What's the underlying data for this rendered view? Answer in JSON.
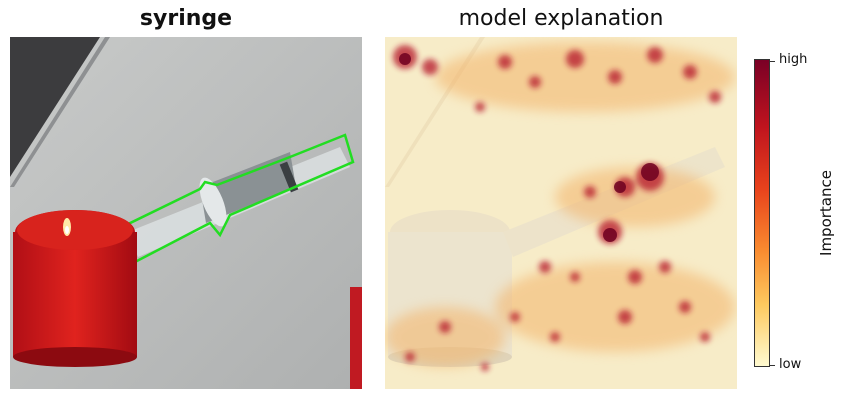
{
  "left_title": "syringe",
  "right_title": "model explanation",
  "colorbar": {
    "high_label": "high",
    "low_label": "low",
    "axis_label": "Importance",
    "colors": [
      "#7a0026",
      "#c0141e",
      "#e8421c",
      "#f98a2f",
      "#fdc95f",
      "#fffad0"
    ]
  },
  "outline_color": "#22dd22"
}
